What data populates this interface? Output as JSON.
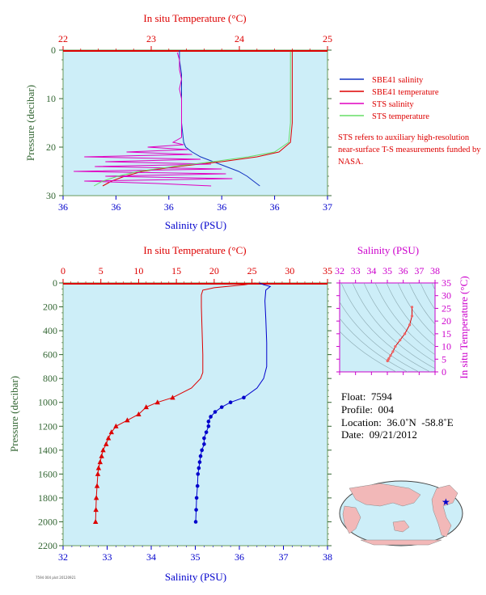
{
  "chart_data": [
    {
      "type": "line",
      "panel": "near-surface",
      "top_axis_label": "In situ Temperature (°C)",
      "top_ticks": [
        "22",
        "23",
        "24",
        "25"
      ],
      "xlabel": "Salinity (PSU)",
      "x_ticks": [
        "36",
        "36",
        "36",
        "36",
        "36",
        "37"
      ],
      "ylabel": "Pressure (decibar)",
      "y_ticks": [
        "0",
        "10",
        "20",
        "30"
      ],
      "temp_range": [
        22,
        25
      ],
      "salinity_range": [
        35.75,
        37.0
      ],
      "pressure_range": [
        0,
        30
      ],
      "y_inverted": true,
      "grid": false,
      "legend_position": "right",
      "series": [
        {
          "name": "SBE41 salinity",
          "color": "#1030c0",
          "axis": "salinity",
          "points": [
            [
              36.3,
              0
            ],
            [
              36.3,
              2
            ],
            [
              36.31,
              5
            ],
            [
              36.31,
              10
            ],
            [
              36.31,
              15
            ],
            [
              36.32,
              19
            ],
            [
              36.33,
              20
            ],
            [
              36.36,
              21
            ],
            [
              36.4,
              22
            ],
            [
              36.46,
              23
            ],
            [
              36.52,
              24
            ],
            [
              36.58,
              25
            ],
            [
              36.62,
              26
            ],
            [
              36.65,
              27
            ],
            [
              36.68,
              28
            ]
          ]
        },
        {
          "name": "SBE41 temperature",
          "color": "#dd0000",
          "axis": "temperature",
          "points": [
            [
              24.6,
              0
            ],
            [
              24.6,
              5
            ],
            [
              24.6,
              10
            ],
            [
              24.6,
              15
            ],
            [
              24.58,
              19
            ],
            [
              24.45,
              21
            ],
            [
              24.2,
              22
            ],
            [
              23.8,
              23
            ],
            [
              23.3,
              24
            ],
            [
              22.9,
              25
            ],
            [
              22.7,
              26
            ],
            [
              22.55,
              27
            ],
            [
              22.45,
              28
            ]
          ]
        },
        {
          "name": "STS salinity",
          "color": "#e000c0",
          "axis": "salinity",
          "points": [
            [
              36.29,
              0.5
            ],
            [
              36.3,
              2
            ],
            [
              36.3,
              4
            ],
            [
              36.31,
              6
            ],
            [
              36.3,
              8
            ],
            [
              36.31,
              10
            ],
            [
              36.31,
              12
            ],
            [
              36.31,
              14
            ],
            [
              36.31,
              16
            ],
            [
              36.31,
              18
            ],
            [
              36.27,
              19
            ],
            [
              36.32,
              19.5
            ],
            [
              36.15,
              20
            ],
            [
              36.34,
              20.5
            ],
            [
              36.05,
              21
            ],
            [
              36.36,
              21.5
            ],
            [
              35.85,
              22
            ],
            [
              36.4,
              22.5
            ],
            [
              35.95,
              23
            ],
            [
              36.45,
              23.5
            ],
            [
              35.9,
              24
            ],
            [
              36.5,
              24.5
            ],
            [
              35.8,
              25
            ],
            [
              36.52,
              25.5
            ],
            [
              35.95,
              26
            ],
            [
              36.55,
              26.5
            ],
            [
              35.85,
              27
            ],
            [
              36.2,
              27.5
            ],
            [
              36.45,
              28
            ]
          ]
        },
        {
          "name": "STS temperature",
          "color": "#66dd66",
          "axis": "temperature",
          "points": [
            [
              24.58,
              0.3
            ],
            [
              24.58,
              5
            ],
            [
              24.58,
              10
            ],
            [
              24.58,
              15
            ],
            [
              24.56,
              19
            ],
            [
              24.4,
              21
            ],
            [
              24.1,
              22
            ],
            [
              23.7,
              23
            ],
            [
              23.25,
              24
            ],
            [
              22.85,
              25
            ],
            [
              22.62,
              26
            ],
            [
              22.45,
              27
            ],
            [
              22.35,
              28
            ]
          ]
        }
      ]
    },
    {
      "type": "line",
      "panel": "full-profile",
      "top_axis_label": "In situ Temperature (°C)",
      "top_ticks": [
        "0",
        "5",
        "10",
        "15",
        "20",
        "25",
        "30",
        "35"
      ],
      "xlabel": "Salinity (PSU)",
      "x_ticks": [
        "32",
        "33",
        "34",
        "35",
        "36",
        "37",
        "38"
      ],
      "ylabel": "Pressure (decibar)",
      "y_ticks": [
        "0",
        "200",
        "400",
        "600",
        "800",
        "1000",
        "1200",
        "1400",
        "1600",
        "1800",
        "2000",
        "2200"
      ],
      "temp_range": [
        0,
        35
      ],
      "salinity_range": [
        32,
        38
      ],
      "pressure_range": [
        0,
        2200
      ],
      "y_inverted": true,
      "grid": false,
      "series": [
        {
          "name": "Temperature",
          "color": "#dd0000",
          "axis": "temperature",
          "marker": "triangle",
          "points": [
            [
              25.5,
              0
            ],
            [
              24.0,
              15
            ],
            [
              20.0,
              40
            ],
            [
              18.5,
              60
            ],
            [
              18.3,
              100
            ],
            [
              18.3,
              200
            ],
            [
              18.4,
              400
            ],
            [
              18.5,
              600
            ],
            [
              18.5,
              750
            ],
            [
              18.2,
              800
            ],
            [
              17.0,
              880
            ],
            [
              14.5,
              960
            ],
            [
              12.5,
              1000
            ],
            [
              11.0,
              1040
            ],
            [
              10.0,
              1100
            ],
            [
              8.5,
              1150
            ],
            [
              7.0,
              1200
            ],
            [
              6.4,
              1250
            ],
            [
              6.0,
              1300
            ],
            [
              5.7,
              1350
            ],
            [
              5.3,
              1400
            ],
            [
              5.1,
              1450
            ],
            [
              4.9,
              1500
            ],
            [
              4.7,
              1550
            ],
            [
              4.6,
              1600
            ],
            [
              4.5,
              1700
            ],
            [
              4.4,
              1800
            ],
            [
              4.35,
              1900
            ],
            [
              4.3,
              2000
            ]
          ]
        },
        {
          "name": "Salinity",
          "color": "#0000cc",
          "axis": "salinity",
          "marker": "circle",
          "points": [
            [
              36.45,
              0
            ],
            [
              36.55,
              15
            ],
            [
              36.7,
              30
            ],
            [
              36.6,
              60
            ],
            [
              36.58,
              150
            ],
            [
              36.6,
              300
            ],
            [
              36.62,
              500
            ],
            [
              36.62,
              700
            ],
            [
              36.55,
              800
            ],
            [
              36.4,
              880
            ],
            [
              36.1,
              960
            ],
            [
              35.8,
              1000
            ],
            [
              35.6,
              1040
            ],
            [
              35.45,
              1080
            ],
            [
              35.35,
              1120
            ],
            [
              35.3,
              1160
            ],
            [
              35.3,
              1200
            ],
            [
              35.25,
              1250
            ],
            [
              35.2,
              1300
            ],
            [
              35.2,
              1350
            ],
            [
              35.15,
              1400
            ],
            [
              35.12,
              1450
            ],
            [
              35.1,
              1500
            ],
            [
              35.08,
              1550
            ],
            [
              35.06,
              1600
            ],
            [
              35.05,
              1700
            ],
            [
              35.03,
              1800
            ],
            [
              35.02,
              1900
            ],
            [
              35.01,
              2000
            ]
          ]
        }
      ]
    },
    {
      "type": "scatter",
      "panel": "T-S diagram",
      "top_axis_label": "Salinity (PSU)",
      "x_ticks": [
        "32",
        "33",
        "34",
        "35",
        "36",
        "37",
        "38"
      ],
      "right_axis_label": "In situ Temperature (°C)",
      "y_ticks": [
        "0",
        "5",
        "10",
        "15",
        "20",
        "25",
        "30",
        "35"
      ],
      "salinity_range": [
        32,
        38
      ],
      "temp_range": [
        0,
        35
      ],
      "points": [
        [
          36.55,
          25.5
        ],
        [
          36.55,
          22
        ],
        [
          36.4,
          18.5
        ],
        [
          36.1,
          15
        ],
        [
          35.8,
          12.5
        ],
        [
          35.5,
          10
        ],
        [
          35.35,
          8
        ],
        [
          35.2,
          6.4
        ],
        [
          35.1,
          5.3
        ],
        [
          35.05,
          4.7
        ],
        [
          35.02,
          4.4
        ],
        [
          35.01,
          4.3
        ]
      ]
    }
  ],
  "legend": [
    {
      "label": "SBE41 salinity",
      "color": "#1030c0"
    },
    {
      "label": "SBE41 temperature",
      "color": "#dd0000"
    },
    {
      "label": "STS salinity",
      "color": "#e000c0"
    },
    {
      "label": "STS temperature",
      "color": "#66dd66"
    }
  ],
  "note": "STS refers to auxiliary high-resolution near-surface T-S measurements funded by NASA.",
  "float_info": {
    "float": "Float:  7594",
    "profile": "Profile:  004",
    "location": "Location:  36.0˚N  -58.8˚E",
    "date": "Date:  09/21/2012"
  },
  "map": {
    "marker_color": "#0000cc"
  },
  "stamp": "7594 004 plot 20120921",
  "colors": {
    "plot_bg": "#cdeef8",
    "temp": "#dd0000",
    "salinity": "#0000cc",
    "ts_axis": "#cc00cc",
    "axis_text": "#336633"
  }
}
